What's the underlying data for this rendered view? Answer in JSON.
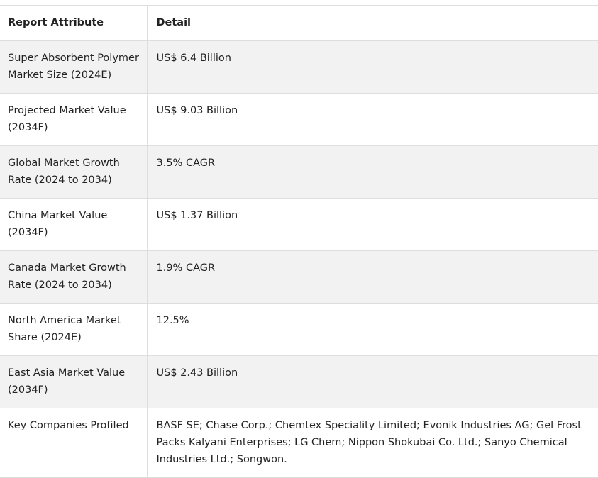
{
  "table": {
    "header": [
      "Report Attribute",
      "Detail"
    ],
    "rows": [
      [
        "Super Absorbent Polymer Market Size (2024E)",
        "US$ 6.4 Billion"
      ],
      [
        "Projected Market Value (2034F)",
        "US$ 9.03 Billion"
      ],
      [
        "Global Market Growth Rate (2024 to 2034)",
        "3.5% CAGR"
      ],
      [
        "China Market Value (2034F)",
        "US$ 1.37 Billion"
      ],
      [
        "Canada Market Growth Rate (2024 to 2034)",
        "1.9% CAGR"
      ],
      [
        "North America Market Share (2024E)",
        "12.5%"
      ],
      [
        "East Asia Market Value (2034F)",
        "US$ 2.43 Billion"
      ],
      [
        "Key Companies Profiled",
        "BASF SE; Chase Corp.; Chemtex Speciality Limited; Evonik Industries AG; Gel Frost Packs Kalyani Enterprises; LG Chem; Nippon Shokubai Co. Ltd.; Sanyo Chemical Industries Ltd.; Songwon."
      ]
    ]
  }
}
